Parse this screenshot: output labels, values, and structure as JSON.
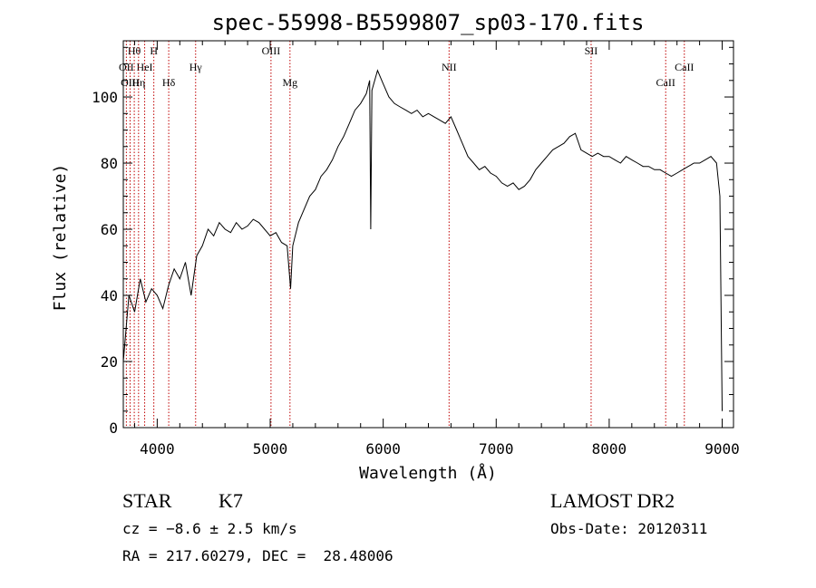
{
  "chart_data": {
    "type": "line",
    "title": "spec-55998-B5599807_sp03-170.fits",
    "xlabel": "Wavelength (Å)",
    "ylabel": "Flux (relative)",
    "xlim": [
      3700,
      9100
    ],
    "ylim": [
      0,
      117
    ],
    "xticks": [
      4000,
      5000,
      6000,
      7000,
      8000,
      9000
    ],
    "yticks": [
      0,
      20,
      40,
      60,
      80,
      100
    ],
    "grid": false,
    "legend": "none",
    "colors": {
      "spectrum": "#000000",
      "lines": "#c00000"
    },
    "series": [
      {
        "x": [
          3700,
          3750,
          3800,
          3850,
          3900,
          3950,
          4000,
          4050,
          4100,
          4150,
          4200,
          4250,
          4300,
          4350,
          4400,
          4450,
          4500,
          4550,
          4600,
          4650,
          4700,
          4750,
          4800,
          4850,
          4900,
          4950,
          5000,
          5050,
          5100,
          5150,
          5180,
          5200,
          5250,
          5300,
          5350,
          5400,
          5450,
          5500,
          5550,
          5600,
          5650,
          5700,
          5750,
          5800,
          5850,
          5880,
          5890,
          5900,
          5950,
          6000,
          6050,
          6100,
          6150,
          6200,
          6250,
          6300,
          6350,
          6400,
          6450,
          6500,
          6550,
          6600,
          6650,
          6700,
          6750,
          6800,
          6850,
          6900,
          6950,
          7000,
          7050,
          7100,
          7150,
          7200,
          7250,
          7300,
          7350,
          7400,
          7450,
          7500,
          7550,
          7600,
          7650,
          7700,
          7750,
          7800,
          7850,
          7900,
          7950,
          8000,
          8050,
          8100,
          8150,
          8200,
          8250,
          8300,
          8350,
          8400,
          8450,
          8500,
          8550,
          8600,
          8650,
          8700,
          8750,
          8800,
          8850,
          8900,
          8950,
          8980,
          9000
        ],
        "y": [
          20,
          40,
          35,
          45,
          38,
          42,
          40,
          36,
          43,
          48,
          45,
          50,
          40,
          52,
          55,
          60,
          58,
          62,
          60,
          59,
          62,
          60,
          61,
          63,
          62,
          60,
          58,
          59,
          56,
          55,
          42,
          55,
          62,
          66,
          70,
          72,
          76,
          78,
          81,
          85,
          88,
          92,
          96,
          98,
          101,
          105,
          60,
          102,
          108,
          104,
          100,
          98,
          97,
          96,
          95,
          96,
          94,
          95,
          94,
          93,
          92,
          94,
          90,
          86,
          82,
          80,
          78,
          79,
          77,
          76,
          74,
          73,
          74,
          72,
          73,
          75,
          78,
          80,
          82,
          84,
          85,
          86,
          88,
          89,
          84,
          83,
          82,
          83,
          82,
          82,
          81,
          80,
          82,
          81,
          80,
          79,
          79,
          78,
          78,
          77,
          76,
          77,
          78,
          79,
          80,
          80,
          81,
          82,
          80,
          70,
          5
        ]
      }
    ],
    "lines": [
      {
        "label": "Hθ",
        "x": 3797,
        "row": 1
      },
      {
        "label": "H",
        "x": 3970,
        "row": 1
      },
      {
        "label": "OII",
        "x": 3727,
        "row": 2
      },
      {
        "label": "HeI",
        "x": 3889,
        "row": 2
      },
      {
        "label": "OIII",
        "x": 3760,
        "row": 3
      },
      {
        "label": "Hη",
        "x": 3835,
        "row": 3
      },
      {
        "label": "Hδ",
        "x": 4102,
        "row": 3
      },
      {
        "label": "Hγ",
        "x": 4340,
        "row": 2
      },
      {
        "label": "OIII",
        "x": 5007,
        "row": 1
      },
      {
        "label": "Mg",
        "x": 5175,
        "row": 3
      },
      {
        "label": "NII",
        "x": 6583,
        "row": 2
      },
      {
        "label": "SII",
        "x": 7840,
        "row": 1
      },
      {
        "label": "CaII",
        "x": 8500,
        "row": 3
      },
      {
        "label": "CaII",
        "x": 8665,
        "row": 2
      }
    ]
  },
  "info": {
    "class": "STAR",
    "subclass": "K7",
    "survey": "LAMOST DR2",
    "cz": "cz = −8.6 ± 2.5 km/s",
    "obs_date": "Obs-Date: 20120311",
    "coords": "RA = 217.60279, DEC =  28.48006"
  }
}
